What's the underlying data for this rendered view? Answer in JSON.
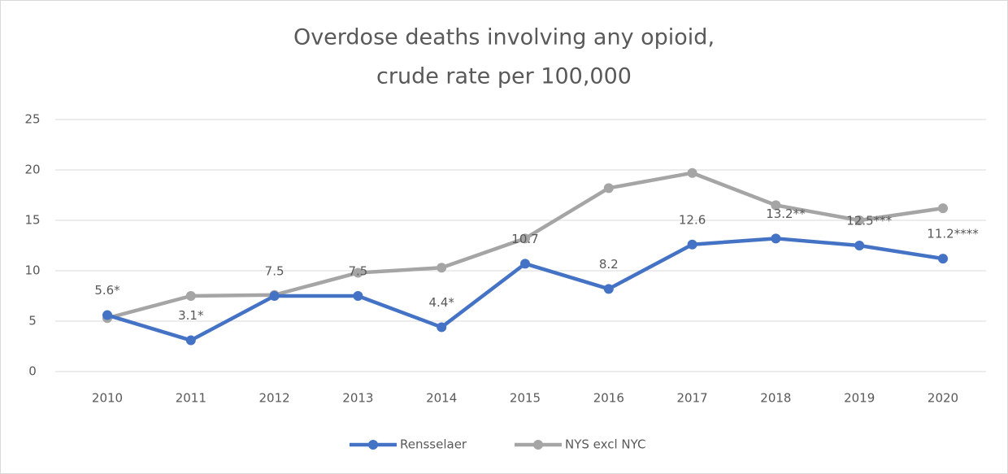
{
  "chart_data": {
    "type": "line",
    "title": [
      "Overdose deaths involving any opioid,",
      "crude rate per 100,000"
    ],
    "categories": [
      "2010",
      "2011",
      "2012",
      "2013",
      "2014",
      "2015",
      "2016",
      "2017",
      "2018",
      "2019",
      "2020"
    ],
    "series": [
      {
        "name": "Rensselaer",
        "color": "#4472c4",
        "values": [
          5.6,
          3.1,
          7.5,
          7.5,
          4.4,
          10.7,
          8.2,
          12.6,
          13.2,
          12.5,
          11.2
        ],
        "value_labels": [
          "5.6*",
          "3.1*",
          "7.5",
          "7.5",
          "4.4*",
          "10.7",
          "8.2",
          "12.6",
          "13.2**",
          "12.5***",
          "11.2****"
        ]
      },
      {
        "name": "NYS excl NYC",
        "color": "#a5a5a5",
        "values": [
          5.3,
          7.5,
          7.6,
          9.8,
          10.3,
          13.2,
          18.2,
          19.7,
          16.5,
          15.0,
          16.2
        ]
      }
    ],
    "ylim": [
      0,
      25
    ],
    "yticks": [
      0,
      5,
      10,
      15,
      20,
      25
    ],
    "grid": true,
    "legend": "bottom"
  }
}
